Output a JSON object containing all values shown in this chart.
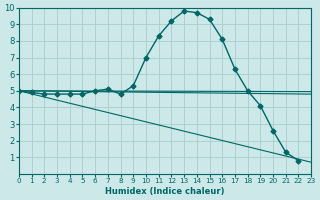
{
  "xlabel": "Humidex (Indice chaleur)",
  "xlim": [
    0,
    23
  ],
  "ylim": [
    0,
    10
  ],
  "xticks": [
    0,
    1,
    2,
    3,
    4,
    5,
    6,
    7,
    8,
    9,
    10,
    11,
    12,
    13,
    14,
    15,
    16,
    17,
    18,
    19,
    20,
    21,
    22,
    23
  ],
  "yticks": [
    1,
    2,
    3,
    4,
    5,
    6,
    7,
    8,
    9,
    10
  ],
  "background_color": "#cce8e8",
  "grid_color": "#aacccc",
  "line_color": "#006666",
  "series": [
    {
      "x": [
        0,
        1,
        2,
        3,
        4,
        5,
        6,
        7,
        8,
        9,
        10,
        11,
        12,
        13,
        14,
        15,
        16,
        17,
        18,
        19,
        20,
        21,
        22
      ],
      "y": [
        5.0,
        4.9,
        4.8,
        4.8,
        4.8,
        4.8,
        5.0,
        5.1,
        4.8,
        5.3,
        7.0,
        8.3,
        9.2,
        9.8,
        9.7,
        9.3,
        8.1,
        6.3,
        5.0,
        4.1,
        2.6,
        1.3,
        0.8
      ],
      "marker": true
    },
    {
      "x": [
        0,
        23
      ],
      "y": [
        5.0,
        4.8
      ],
      "marker": false
    },
    {
      "x": [
        0,
        23
      ],
      "y": [
        5.0,
        0.7
      ],
      "marker": false
    },
    {
      "x": [
        0,
        23
      ],
      "y": [
        5.0,
        4.95
      ],
      "marker": false
    }
  ]
}
